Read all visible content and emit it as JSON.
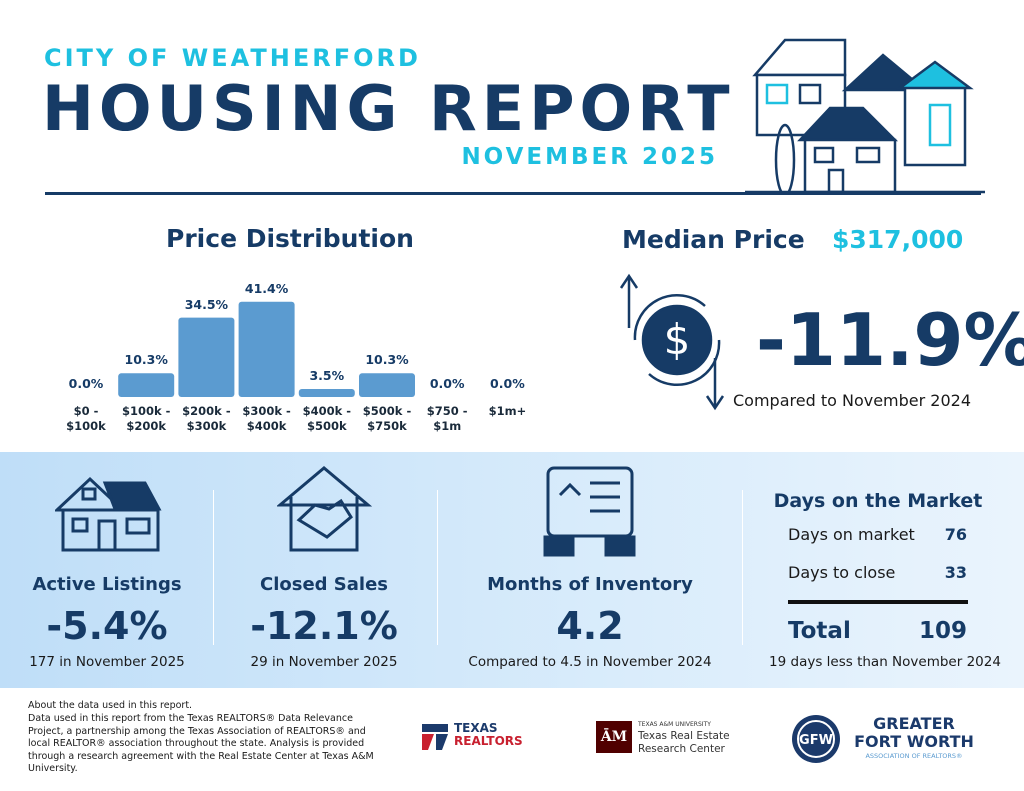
{
  "header": {
    "city": "CITY OF WEATHERFORD",
    "title": "HOUSING REPORT",
    "period": "NOVEMBER 2025"
  },
  "price_distribution": {
    "title": "Price Distribution",
    "categories": [
      "$0 - $100k",
      "$100k - $200k",
      "$200k - $300k",
      "$300k - $400k",
      "$400k - $500k",
      "$500k - $750k",
      "$750 - $1m",
      "$1m+"
    ],
    "values": [
      0.0,
      10.3,
      34.5,
      41.4,
      3.5,
      10.3,
      0.0,
      0.0
    ],
    "value_labels": [
      "0.0%",
      "10.3%",
      "34.5%",
      "41.4%",
      "3.5%",
      "10.3%",
      "0.0%",
      "0.0%"
    ],
    "color": "#5b9bd0"
  },
  "median_price": {
    "label": "Median Price",
    "value": "$317,000",
    "change": "-11.9%",
    "note": "Compared to November 2024"
  },
  "metrics": [
    {
      "label": "Active Listings",
      "change": "-5.4%",
      "note": "177 in November 2025"
    },
    {
      "label": "Closed Sales",
      "change": "-12.1%",
      "note": "29 in November 2025"
    },
    {
      "label": "Months of Inventory",
      "change": "4.2",
      "note": "Compared to 4.5 in November 2024"
    }
  ],
  "days_on_market": {
    "title": "Days on the Market",
    "rows": [
      [
        "Days on market",
        "76"
      ],
      [
        "Days to close",
        "33"
      ]
    ],
    "total_label": "Total",
    "total": "109",
    "note": "19 days less than November 2024"
  },
  "footer": {
    "about": "About the data used in this report.",
    "text": "Data used in this report from the Texas REALTORS® Data Relevance Project, a partnership among the Texas Association of REALTORS® and local REALTOR® association throughout the state. Analysis is provided through a research agreement with the Real Estate Center at Texas A&M University.",
    "logo_texas": "TEXAS",
    "logo_realtors": "REALTORS",
    "logo_tamu_small": "TEXAS A&M UNIVERSITY",
    "logo_tamu": "Texas Real Estate Research Center",
    "logo_gfw_1": "GREATER",
    "logo_gfw_2": "FORT WORTH",
    "logo_gfw_3": "ASSOCIATION OF REALTORS®"
  }
}
